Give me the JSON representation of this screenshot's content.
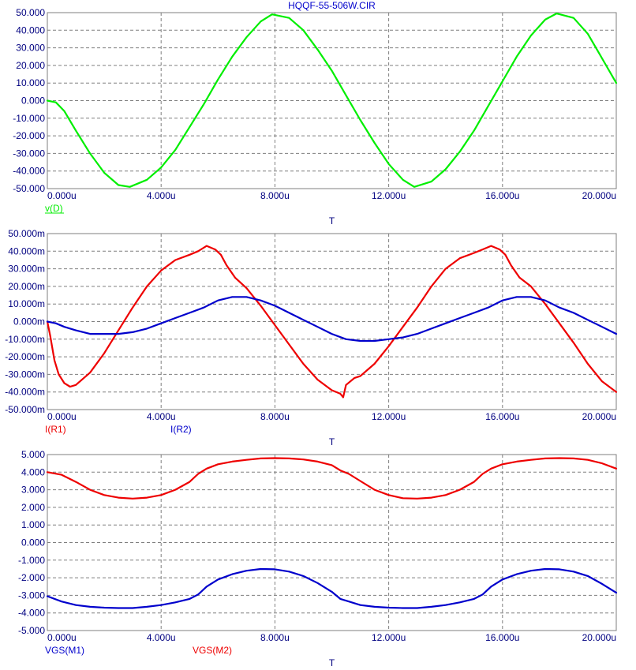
{
  "chart_data": [
    {
      "type": "line",
      "title": "HQQF-55-506W.CIR",
      "xlabel": "T",
      "xlim": [
        0,
        20
      ],
      "ylim": [
        -50,
        50
      ],
      "xticks": [
        "0.000u",
        "4.000u",
        "8.000u",
        "12.000u",
        "16.000u",
        "20.000u"
      ],
      "yticks": [
        "50.000",
        "40.000",
        "30.000",
        "20.000",
        "10.000",
        "0.000",
        "-10.000",
        "-20.000",
        "-30.000",
        "-40.000",
        "-50.000"
      ],
      "grid": true,
      "series": [
        {
          "name": "v(D)",
          "color": "#00ee00",
          "x": [
            0,
            0.3,
            0.6,
            1,
            1.5,
            2,
            2.5,
            2.9,
            3.5,
            4,
            4.5,
            5,
            5.5,
            6,
            6.5,
            7,
            7.5,
            7.9,
            8.5,
            9,
            9.5,
            10,
            10.5,
            11,
            11.5,
            12,
            12.5,
            12.9,
            13.5,
            14,
            14.5,
            15,
            15.5,
            16,
            16.5,
            17,
            17.5,
            17.9,
            18.5,
            19,
            19.5,
            20
          ],
          "y": [
            0,
            -1,
            -6,
            -17,
            -30,
            -41,
            -48,
            -49,
            -45,
            -38,
            -28,
            -15,
            -2,
            12,
            25,
            36,
            45,
            49,
            47,
            40,
            29,
            17,
            3,
            -11,
            -24,
            -36,
            -45,
            -49,
            -46,
            -39,
            -29,
            -17,
            -3,
            11,
            25,
            37,
            46,
            49.5,
            47,
            38,
            24,
            10
          ]
        }
      ]
    },
    {
      "type": "line",
      "xlabel": "T",
      "xlim": [
        0,
        20
      ],
      "ylim": [
        -50,
        50
      ],
      "xticks": [
        "0.000u",
        "4.000u",
        "8.000u",
        "12.000u",
        "16.000u",
        "20.000u"
      ],
      "yticks": [
        "50.000m",
        "40.000m",
        "30.000m",
        "20.000m",
        "10.000m",
        "0.000m",
        "-10.000m",
        "-20.000m",
        "-30.000m",
        "-40.000m",
        "-50.000m"
      ],
      "grid": true,
      "series": [
        {
          "name": "I(R1)",
          "color": "#ee0000",
          "x": [
            0,
            0.1,
            0.25,
            0.4,
            0.6,
            0.8,
            1,
            1.5,
            2,
            2.5,
            3,
            3.5,
            4,
            4.5,
            5,
            5.3,
            5.6,
            5.9,
            6.1,
            6.3,
            6.6,
            7,
            7.5,
            8,
            8.5,
            9,
            9.5,
            10,
            10.3,
            10.4,
            10.5,
            10.8,
            11,
            11.5,
            12,
            12.5,
            13,
            13.5,
            14,
            14.5,
            15,
            15.3,
            15.6,
            15.9,
            16.1,
            16.3,
            16.6,
            17,
            17.5,
            18,
            18.5,
            19,
            19.5,
            20
          ],
          "y": [
            0,
            -8,
            -22,
            -30,
            -35,
            -37,
            -36,
            -29,
            -18,
            -5,
            8,
            20,
            29,
            35,
            38,
            40,
            43,
            41,
            38,
            32,
            25,
            19,
            9,
            -2,
            -13,
            -24,
            -33,
            -39,
            -41,
            -43,
            -36,
            -32,
            -31,
            -24,
            -14,
            -3,
            8,
            20,
            30,
            36,
            39,
            41,
            43,
            41,
            38,
            32,
            25,
            20,
            10,
            -1,
            -12,
            -24,
            -34,
            -40
          ]
        },
        {
          "name": "I(R2)",
          "color": "#0000cc",
          "x": [
            0,
            0.3,
            0.6,
            1,
            1.5,
            2,
            2.5,
            3,
            3.5,
            4,
            4.5,
            5,
            5.5,
            6,
            6.5,
            7,
            7.5,
            8,
            8.5,
            9,
            9.5,
            10,
            10.5,
            11,
            11.5,
            12,
            12.5,
            13,
            13.5,
            14,
            14.5,
            15,
            15.5,
            16,
            16.5,
            17,
            17.5,
            18,
            18.5,
            19,
            19.5,
            20
          ],
          "y": [
            0,
            -1,
            -3,
            -5,
            -7,
            -7,
            -7,
            -6,
            -4,
            -1,
            2,
            5,
            8,
            12,
            14,
            14,
            12,
            9,
            5,
            1,
            -3,
            -7,
            -10,
            -11,
            -11,
            -10,
            -9,
            -7,
            -4,
            -1,
            2,
            5,
            8,
            12,
            14,
            14,
            12,
            8,
            5,
            1,
            -3,
            -7
          ]
        }
      ]
    },
    {
      "type": "line",
      "xlabel": "T",
      "xlim": [
        0,
        20
      ],
      "ylim": [
        -5,
        5
      ],
      "xticks": [
        "0.000u",
        "4.000u",
        "8.000u",
        "12.000u",
        "16.000u",
        "20.000u"
      ],
      "yticks": [
        "5.000",
        "4.000",
        "3.000",
        "2.000",
        "1.000",
        "0.000",
        "-1.000",
        "-2.000",
        "-3.000",
        "-4.000",
        "-5.000"
      ],
      "grid": true,
      "series": [
        {
          "name": "VGS(M1)",
          "color": "#0000cc",
          "x": [
            0,
            0.5,
            1,
            1.5,
            2,
            2.5,
            3,
            3.5,
            4,
            4.5,
            5,
            5.3,
            5.6,
            6,
            6.5,
            7,
            7.5,
            8,
            8.5,
            9,
            9.5,
            10,
            10.3,
            10.6,
            11,
            11.5,
            12,
            12.5,
            13,
            13.5,
            14,
            14.5,
            15,
            15.3,
            15.6,
            16,
            16.5,
            17,
            17.5,
            18,
            18.5,
            19,
            19.5,
            20
          ],
          "y": [
            -3.05,
            -3.35,
            -3.55,
            -3.65,
            -3.7,
            -3.72,
            -3.72,
            -3.65,
            -3.55,
            -3.4,
            -3.2,
            -2.95,
            -2.5,
            -2.1,
            -1.8,
            -1.6,
            -1.5,
            -1.52,
            -1.65,
            -1.9,
            -2.3,
            -2.8,
            -3.2,
            -3.35,
            -3.55,
            -3.65,
            -3.7,
            -3.72,
            -3.72,
            -3.65,
            -3.55,
            -3.4,
            -3.2,
            -2.95,
            -2.5,
            -2.1,
            -1.8,
            -1.6,
            -1.5,
            -1.52,
            -1.65,
            -1.9,
            -2.35,
            -2.85
          ]
        },
        {
          "name": "VGS(M2)",
          "color": "#ee0000",
          "x": [
            0,
            0.5,
            1,
            1.5,
            2,
            2.5,
            3,
            3.5,
            4,
            4.5,
            5,
            5.3,
            5.6,
            6,
            6.5,
            7,
            7.5,
            8,
            8.5,
            9,
            9.5,
            10,
            10.3,
            10.6,
            11,
            11.5,
            12,
            12.5,
            13,
            13.5,
            14,
            14.5,
            15,
            15.3,
            15.6,
            16,
            16.5,
            17,
            17.5,
            18,
            18.5,
            19,
            19.5,
            20
          ],
          "y": [
            4.0,
            3.85,
            3.45,
            3.0,
            2.7,
            2.55,
            2.5,
            2.55,
            2.7,
            3.0,
            3.45,
            3.9,
            4.2,
            4.45,
            4.6,
            4.7,
            4.78,
            4.8,
            4.78,
            4.72,
            4.6,
            4.4,
            4.1,
            3.9,
            3.5,
            3.0,
            2.7,
            2.52,
            2.5,
            2.55,
            2.7,
            3.0,
            3.45,
            3.9,
            4.2,
            4.45,
            4.6,
            4.7,
            4.78,
            4.8,
            4.78,
            4.7,
            4.5,
            4.2
          ]
        }
      ]
    }
  ]
}
